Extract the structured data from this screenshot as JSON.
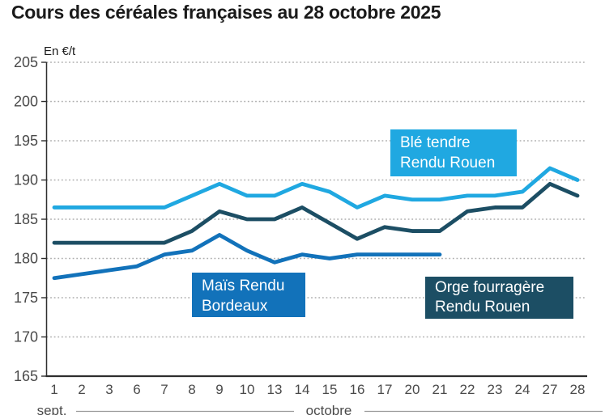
{
  "title": "Cours des céréales françaises au 28 octobre 2025",
  "chart_data": {
    "type": "line",
    "title": "Cours des céréales françaises au 28 octobre 2025",
    "ylabel": "En €/t",
    "ylim": [
      165,
      205
    ],
    "ytick_labels": [
      "165",
      "170",
      "175",
      "180",
      "185",
      "190",
      "195",
      "200",
      "205"
    ],
    "x_labels": [
      "1",
      "2",
      "3",
      "6",
      "7",
      "8",
      "9",
      "10",
      "13",
      "14",
      "15",
      "16",
      "17",
      "20",
      "21",
      "22",
      "23",
      "24",
      "27",
      "28"
    ],
    "month_labels": [
      "sept.",
      "octobre"
    ],
    "grid": "horizontal dotted",
    "legend_position": "inline annotation boxes",
    "series": [
      {
        "id": "ble-tendre",
        "name": "Blé tendre Rendu Rouen",
        "color": "#20a8e1",
        "values": [
          186.5,
          186.5,
          186.5,
          186.5,
          186.5,
          188,
          189.5,
          188,
          188,
          189.5,
          188.5,
          186.5,
          188,
          187.5,
          187.5,
          188,
          188,
          188.5,
          191.5,
          190
        ]
      },
      {
        "id": "orge",
        "name": "Orge fourragère Rendu Rouen",
        "color": "#1c4e64",
        "values": [
          182,
          182,
          182,
          182,
          182,
          183.5,
          186,
          185,
          185,
          186.5,
          184.5,
          182.5,
          184,
          183.5,
          183.5,
          186,
          186.5,
          186.5,
          189.5,
          188
        ]
      },
      {
        "id": "mais",
        "name": "Maïs Rendu Bordeaux",
        "color": "#1272ba",
        "values": [
          177.5,
          178,
          178.5,
          179,
          180.5,
          181,
          183,
          181,
          179.5,
          180.5,
          180,
          180.5,
          180.5,
          180.5,
          180.5
        ]
      }
    ],
    "annotations": [
      {
        "id": "ble",
        "line1": "Blé tendre",
        "line2": "Rendu Rouen"
      },
      {
        "id": "mais",
        "line1": "Maïs Rendu",
        "line2": "Bordeaux"
      },
      {
        "id": "orge",
        "line1": "Orge fourragère",
        "line2": "Rendu Rouen"
      }
    ],
    "style_colors": {
      "axis": "#2e2e2e",
      "grid_dots": "#aeaeae",
      "tick_text": "#4a4a4a",
      "month_line": "#999999"
    }
  }
}
